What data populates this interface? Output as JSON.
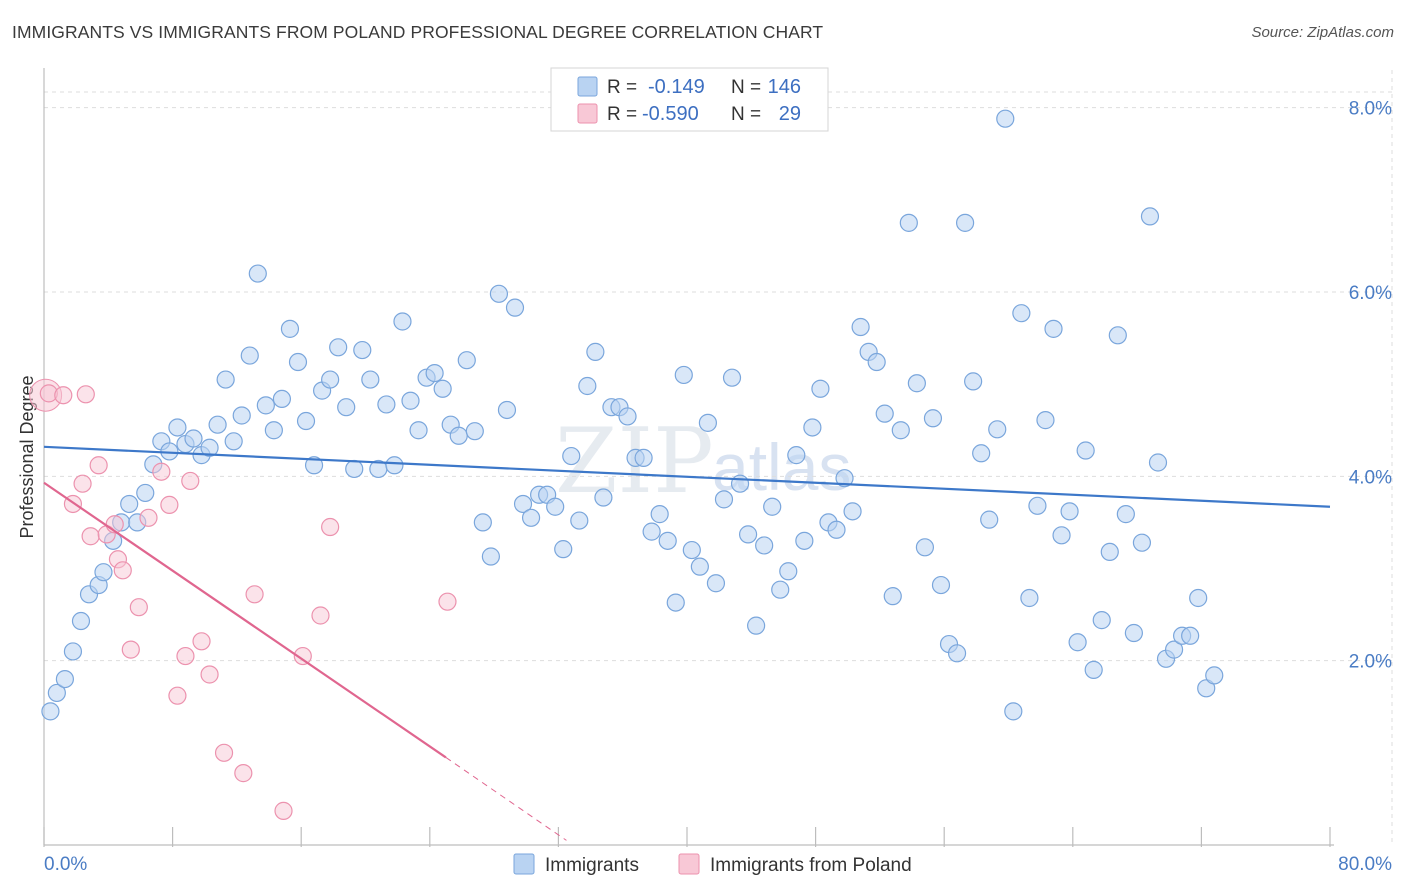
{
  "title": "IMMIGRANTS VS IMMIGRANTS FROM POLAND PROFESSIONAL DEGREE CORRELATION CHART",
  "source": "Source: ZipAtlas.com",
  "watermark": {
    "part1": "ZIP",
    "part2": "atlas"
  },
  "colors": {
    "blue_fill": "#b9d3f2",
    "blue_stroke": "#7aa6dc",
    "blue_line": "#3d78c9",
    "pink_fill": "#f8c8d6",
    "pink_stroke": "#ec92ae",
    "pink_line": "#e0668f",
    "grid": "#dddddd",
    "axis": "#bdbdbd",
    "tick_text": "#4a7cc4"
  },
  "legend": {
    "rows": [
      {
        "r_label": "R =",
        "r_value": "-0.149",
        "n_label": "N =",
        "n_value": "146"
      },
      {
        "r_label": "R =",
        "r_value": "-0.590",
        "n_label": "N =",
        "n_value": "29"
      }
    ]
  },
  "chart_data": {
    "type": "scatter",
    "title": "IMMIGRANTS VS IMMIGRANTS FROM POLAND PROFESSIONAL DEGREE CORRELATION CHART",
    "xlabel": "",
    "ylabel": "Professional Degree",
    "xlim": [
      0,
      80
    ],
    "ylim": [
      0,
      8.3
    ],
    "x_tick_labels": [
      "0.0%",
      "80.0%"
    ],
    "y_ticks": [
      2,
      4,
      6,
      8
    ],
    "y_tick_labels": [
      "2.0%",
      "4.0%",
      "6.0%",
      "8.0%"
    ],
    "grid": true,
    "legend_position": "top-center",
    "series": [
      {
        "name": "Immigrants",
        "color": "#b9d3f2",
        "trend": {
          "x": [
            0,
            80
          ],
          "y": [
            4.32,
            3.67
          ]
        },
        "points": [
          [
            0.4,
            1.45
          ],
          [
            0.8,
            1.65
          ],
          [
            1.3,
            1.8
          ],
          [
            1.8,
            2.1
          ],
          [
            2.3,
            2.43
          ],
          [
            2.8,
            2.72
          ],
          [
            3.4,
            2.82
          ],
          [
            3.7,
            2.96
          ],
          [
            4.3,
            3.3
          ],
          [
            4.8,
            3.5
          ],
          [
            5.3,
            3.7
          ],
          [
            5.8,
            3.5
          ],
          [
            6.3,
            3.82
          ],
          [
            6.8,
            4.13
          ],
          [
            7.3,
            4.38
          ],
          [
            7.8,
            4.27
          ],
          [
            8.3,
            4.53
          ],
          [
            8.8,
            4.35
          ],
          [
            9.3,
            4.41
          ],
          [
            9.8,
            4.23
          ],
          [
            10.3,
            4.31
          ],
          [
            10.8,
            4.56
          ],
          [
            11.3,
            5.05
          ],
          [
            11.8,
            4.38
          ],
          [
            12.3,
            4.66
          ],
          [
            12.8,
            5.31
          ],
          [
            13.3,
            6.2
          ],
          [
            13.8,
            4.77
          ],
          [
            14.3,
            4.5
          ],
          [
            14.8,
            4.84
          ],
          [
            15.3,
            5.6
          ],
          [
            15.8,
            5.24
          ],
          [
            16.3,
            4.6
          ],
          [
            16.8,
            4.12
          ],
          [
            17.3,
            4.93
          ],
          [
            17.8,
            5.05
          ],
          [
            18.3,
            5.4
          ],
          [
            18.8,
            4.75
          ],
          [
            19.3,
            4.08
          ],
          [
            19.8,
            5.37
          ],
          [
            20.3,
            5.05
          ],
          [
            20.8,
            4.08
          ],
          [
            21.3,
            4.78
          ],
          [
            21.8,
            4.12
          ],
          [
            22.3,
            5.68
          ],
          [
            22.8,
            4.82
          ],
          [
            23.3,
            4.5
          ],
          [
            23.8,
            5.07
          ],
          [
            24.3,
            5.12
          ],
          [
            24.8,
            4.95
          ],
          [
            25.3,
            4.56
          ],
          [
            25.8,
            4.44
          ],
          [
            26.3,
            5.26
          ],
          [
            26.8,
            4.49
          ],
          [
            27.3,
            3.5
          ],
          [
            27.8,
            3.13
          ],
          [
            28.3,
            5.98
          ],
          [
            28.8,
            4.72
          ],
          [
            29.3,
            5.83
          ],
          [
            29.8,
            3.7
          ],
          [
            30.3,
            3.55
          ],
          [
            30.8,
            3.8
          ],
          [
            31.3,
            3.8
          ],
          [
            31.8,
            3.67
          ],
          [
            32.3,
            3.21
          ],
          [
            32.8,
            4.22
          ],
          [
            33.3,
            3.52
          ],
          [
            33.8,
            4.98
          ],
          [
            34.3,
            5.35
          ],
          [
            34.8,
            3.77
          ],
          [
            35.3,
            4.75
          ],
          [
            35.8,
            4.75
          ],
          [
            36.3,
            4.65
          ],
          [
            36.8,
            4.2
          ],
          [
            37.3,
            4.2
          ],
          [
            37.8,
            3.4
          ],
          [
            38.3,
            3.59
          ],
          [
            38.8,
            3.3
          ],
          [
            39.3,
            2.63
          ],
          [
            39.8,
            5.1
          ],
          [
            40.3,
            3.2
          ],
          [
            40.8,
            3.02
          ],
          [
            41.3,
            4.58
          ],
          [
            41.8,
            2.84
          ],
          [
            42.3,
            3.75
          ],
          [
            42.8,
            5.07
          ],
          [
            43.3,
            3.92
          ],
          [
            43.8,
            3.37
          ],
          [
            44.3,
            2.38
          ],
          [
            44.8,
            3.25
          ],
          [
            45.3,
            3.67
          ],
          [
            45.8,
            2.77
          ],
          [
            46.3,
            2.97
          ],
          [
            46.8,
            4.23
          ],
          [
            47.3,
            3.3
          ],
          [
            47.8,
            4.53
          ],
          [
            48.3,
            4.95
          ],
          [
            48.8,
            3.5
          ],
          [
            49.3,
            3.42
          ],
          [
            49.8,
            3.98
          ],
          [
            50.3,
            3.62
          ],
          [
            50.8,
            5.62
          ],
          [
            51.3,
            5.35
          ],
          [
            51.8,
            5.24
          ],
          [
            52.3,
            4.68
          ],
          [
            52.8,
            2.7
          ],
          [
            53.3,
            4.5
          ],
          [
            53.8,
            6.75
          ],
          [
            54.3,
            5.01
          ],
          [
            54.8,
            3.23
          ],
          [
            55.3,
            4.63
          ],
          [
            55.8,
            2.82
          ],
          [
            56.3,
            2.18
          ],
          [
            56.8,
            2.08
          ],
          [
            57.3,
            6.75
          ],
          [
            57.8,
            5.03
          ],
          [
            58.3,
            4.25
          ],
          [
            58.8,
            3.53
          ],
          [
            59.3,
            4.51
          ],
          [
            59.8,
            7.88
          ],
          [
            60.3,
            1.45
          ],
          [
            60.8,
            5.77
          ],
          [
            61.3,
            2.68
          ],
          [
            61.8,
            3.68
          ],
          [
            62.3,
            4.61
          ],
          [
            62.8,
            5.6
          ],
          [
            63.3,
            3.36
          ],
          [
            63.8,
            3.62
          ],
          [
            64.3,
            2.2
          ],
          [
            64.8,
            4.28
          ],
          [
            65.3,
            1.9
          ],
          [
            65.8,
            2.44
          ],
          [
            66.3,
            3.18
          ],
          [
            66.8,
            5.53
          ],
          [
            67.3,
            3.59
          ],
          [
            67.8,
            2.3
          ],
          [
            68.3,
            3.28
          ],
          [
            68.8,
            6.82
          ],
          [
            69.3,
            4.15
          ],
          [
            69.8,
            2.02
          ],
          [
            70.3,
            2.12
          ],
          [
            70.8,
            2.27
          ],
          [
            71.3,
            2.27
          ],
          [
            71.8,
            2.68
          ],
          [
            72.3,
            1.7
          ],
          [
            72.8,
            1.84
          ]
        ]
      },
      {
        "name": "Immigrants from Poland",
        "color": "#f8c8d6",
        "trend": {
          "x": [
            0,
            25
          ],
          "y": [
            3.93,
            0.95
          ],
          "dashed_to": [
            32.5,
            0.05
          ]
        },
        "points": [
          [
            0.3,
            4.9
          ],
          [
            1.2,
            4.88
          ],
          [
            1.8,
            3.7
          ],
          [
            2.4,
            3.92
          ],
          [
            2.9,
            3.35
          ],
          [
            3.4,
            4.12
          ],
          [
            3.9,
            3.37
          ],
          [
            4.4,
            3.48
          ],
          [
            4.6,
            3.1
          ],
          [
            4.9,
            2.98
          ],
          [
            5.4,
            2.12
          ],
          [
            5.9,
            2.58
          ],
          [
            6.5,
            3.55
          ],
          [
            7.3,
            4.05
          ],
          [
            7.8,
            3.69
          ],
          [
            8.3,
            1.62
          ],
          [
            8.8,
            2.05
          ],
          [
            9.1,
            3.95
          ],
          [
            9.8,
            2.21
          ],
          [
            10.3,
            1.85
          ],
          [
            11.2,
            1.0
          ],
          [
            12.4,
            0.78
          ],
          [
            13.1,
            2.72
          ],
          [
            14.9,
            0.37
          ],
          [
            16.1,
            2.05
          ],
          [
            17.2,
            2.49
          ],
          [
            17.8,
            3.45
          ],
          [
            25.1,
            2.64
          ],
          [
            2.6,
            4.89
          ]
        ]
      }
    ]
  }
}
